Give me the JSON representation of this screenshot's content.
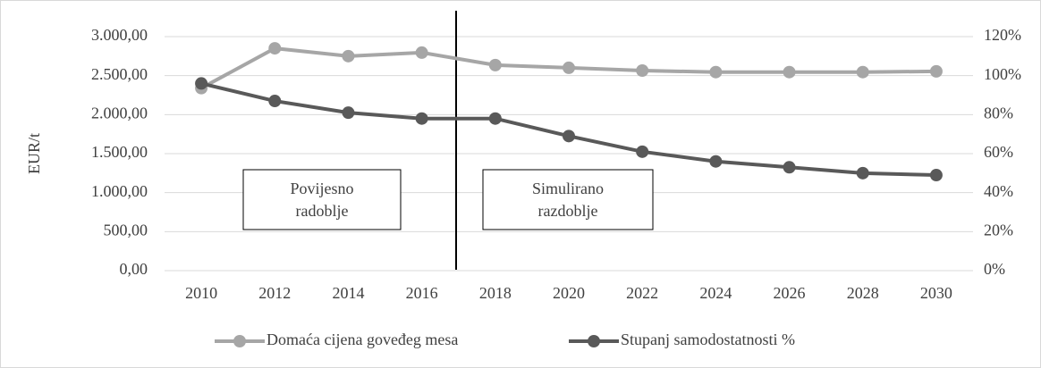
{
  "chart_data": {
    "type": "line",
    "y_label": "EUR/t",
    "categories": [
      "2010",
      "2012",
      "2014",
      "2016",
      "2018",
      "2020",
      "2022",
      "2024",
      "2026",
      "2028",
      "2030"
    ],
    "series": [
      {
        "name": "Domaća cijena goveđeg mesa",
        "color": "#a6a6a6",
        "axis": "y",
        "values": [
          2340,
          2850,
          2750,
          2795,
          2635,
          2600,
          2565,
          2545,
          2545,
          2545,
          2555
        ]
      },
      {
        "name": "Stupanj samodostatnosti %",
        "color": "#595959",
        "axis": "y2",
        "values": [
          96,
          87,
          81,
          78,
          78,
          69,
          61,
          56,
          53,
          50,
          49
        ]
      }
    ],
    "ylim": [
      0,
      3000
    ],
    "yticks": [
      {
        "value": 0,
        "label": "0,00"
      },
      {
        "value": 500,
        "label": "500,00"
      },
      {
        "value": 1000,
        "label": "1.000,00"
      },
      {
        "value": 1500,
        "label": "1.500,00"
      },
      {
        "value": 2000,
        "label": "2.000,00"
      },
      {
        "value": 2500,
        "label": "2.500,00"
      },
      {
        "value": 3000,
        "label": "3.000,00"
      }
    ],
    "y2lim": [
      0,
      120
    ],
    "y2ticks": [
      {
        "value": 0,
        "label": "0%"
      },
      {
        "value": 20,
        "label": "20%"
      },
      {
        "value": 40,
        "label": "40%"
      },
      {
        "value": 60,
        "label": "60%"
      },
      {
        "value": 80,
        "label": "80%"
      },
      {
        "value": 100,
        "label": "100%"
      },
      {
        "value": 120,
        "label": "120%"
      }
    ],
    "grid": true,
    "legend": "bottom",
    "annotations": [
      [
        "Povijesno",
        "radoblje"
      ],
      [
        "Simulirano",
        "razdoblje"
      ]
    ]
  }
}
